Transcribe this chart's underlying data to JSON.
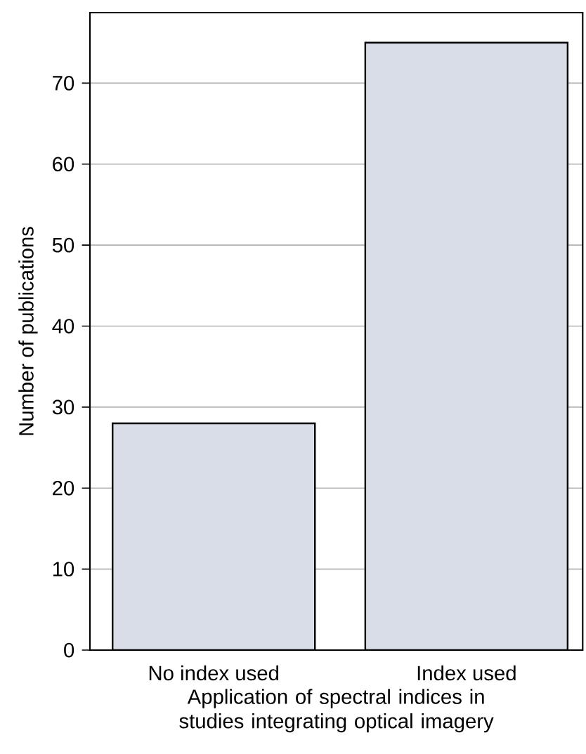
{
  "chart_data": {
    "type": "bar",
    "xlabel": "Application of spectral indices in studies integrating optical imagery",
    "ylabel": "Number of publications",
    "categories": [
      "No index used",
      "Index used"
    ],
    "values": [
      28,
      75
    ],
    "color": "#d9dde8",
    "ylim": [
      0,
      78.7
    ],
    "yticks": [
      0,
      10,
      20,
      30,
      40,
      50,
      60,
      70
    ],
    "grid": "y"
  }
}
